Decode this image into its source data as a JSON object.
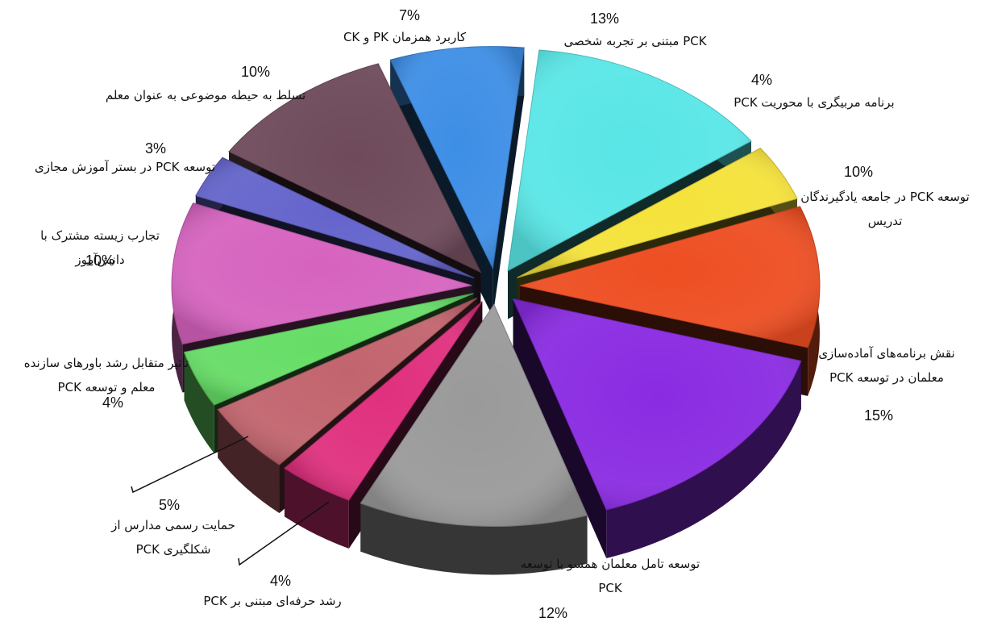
{
  "chart_data": {
    "type": "pie",
    "style": "exploded 3D pie",
    "slices": [
      {
        "label": "PCK مبتنی بر تجربه شخصی",
        "label_lines": [
          "PCK مبتنی بر تجربه شخصی"
        ],
        "value": 13,
        "value_text": "13%",
        "color": "#59e6e6"
      },
      {
        "label": "برنامه مربیگری با محوریت PCK",
        "label_lines": [
          "برنامه مربیگری با محوریت PCK"
        ],
        "value": 4,
        "value_text": "4%",
        "color": "#f5e23a"
      },
      {
        "label": "توسعه PCK در جامعه یادگیرندگان تدریس",
        "label_lines": [
          "توسعه PCK در جامعه یادگیرندگان",
          "تدریس"
        ],
        "value": 10,
        "value_text": "10%",
        "color": "#ee4e22"
      },
      {
        "label": "نقش برنامه‌های آماده‌سازی معلمان در توسعه PCK",
        "label_lines": [
          "نقش برنامه‌های آماده‌سازی",
          "معلمان در توسعه PCK"
        ],
        "value": 15,
        "value_text": "15%",
        "color": "#8a2be2"
      },
      {
        "label": "توسعه تامل معلمان همسو با توسعه PCK",
        "label_lines": [
          "توسعه تامل معلمان همسو با توسعه",
          "PCK"
        ],
        "value": 12,
        "value_text": "12%",
        "color": "#9a9a9a"
      },
      {
        "label": "رشد حرفه‌ای مبتنی بر PCK",
        "label_lines": [
          "رشد حرفه‌ای مبتنی بر PCK"
        ],
        "value": 4,
        "value_text": "4%",
        "color": "#e0307e"
      },
      {
        "label": "حمایت رسمی مدارس از شکلگیری PCK",
        "label_lines": [
          "حمایت رسمی مدارس از",
          "شکلگیری  PCK"
        ],
        "value": 5,
        "value_text": "5%",
        "color": "#c2646e"
      },
      {
        "label": "تاثیر متقابل رشد باورهای سازنده معلم و توسعه PCK",
        "label_lines": [
          "تاثیر متقابل رشد باورهای سازنده",
          "معلم و توسعه PCK"
        ],
        "value": 4,
        "value_text": "4%",
        "color": "#66dd66"
      },
      {
        "label": "تجارب زیسته مشترک با دانش‌آموز",
        "label_lines": [
          "تجارب  زیسته  مشترک  با",
          "دانش‌آموز"
        ],
        "value": 10,
        "value_text": "10%",
        "color": "#d663bf"
      },
      {
        "label": "توسعه PCK در بستر آموزش مجازی",
        "label_lines": [
          "توسعه PCK در بستر آموزش مجازی"
        ],
        "value": 3,
        "value_text": "3%",
        "color": "#6464cc"
      },
      {
        "label": "تسلط به حیطه موضوعی به عنوان معلم",
        "label_lines": [
          "تسلط به حیطه موضوعی به عنوان معلم"
        ],
        "value": 10,
        "value_text": "10%",
        "color": "#6e4a5a"
      },
      {
        "label": "کاربرد همزمان PK و CK",
        "label_lines": [
          "کاربرد همزمان PK و CK"
        ],
        "value": 7,
        "value_text": "7%",
        "color": "#3d8ee6"
      }
    ]
  }
}
